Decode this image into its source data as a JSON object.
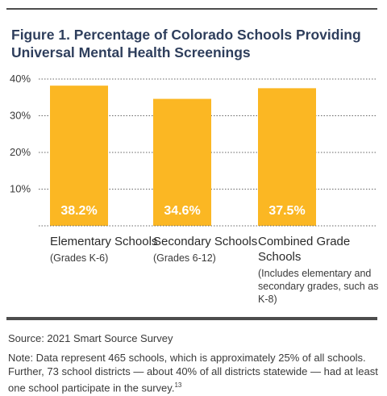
{
  "chart_data": {
    "type": "bar",
    "title": "Figure 1. Percentage of Colorado Schools Providing Universal Mental Health Screenings",
    "categories": [
      "Elementary Schools",
      "Secondary Schools",
      "Combined Grade Schools"
    ],
    "category_notes": [
      "(Grades K-6)",
      "(Grades 6-12)",
      "(Includes elementary and secondary grades, such as K-8)"
    ],
    "values": [
      38.2,
      34.6,
      37.5
    ],
    "value_labels": [
      "38.2%",
      "34.6%",
      "37.5%"
    ],
    "yticks": [
      "10%",
      "20%",
      "30%",
      "40%"
    ],
    "ytick_values": [
      10,
      20,
      30,
      40
    ],
    "ylim": [
      0,
      40
    ],
    "grid": true,
    "bar_color": "#fbb723",
    "label_color": "#ffffff"
  },
  "footer": {
    "source": "Source: 2021 Smart Source Survey",
    "note": "Note: Data represent 465 schools, which is approximately 25% of all schools. Further, 73 school districts — about 40% of all districts statewide — had at least one school participate in the survey.",
    "note_ref": "13"
  },
  "colors": {
    "title": "#2e3e5c",
    "rule": "#4d4d4d",
    "grid": "#666666"
  }
}
